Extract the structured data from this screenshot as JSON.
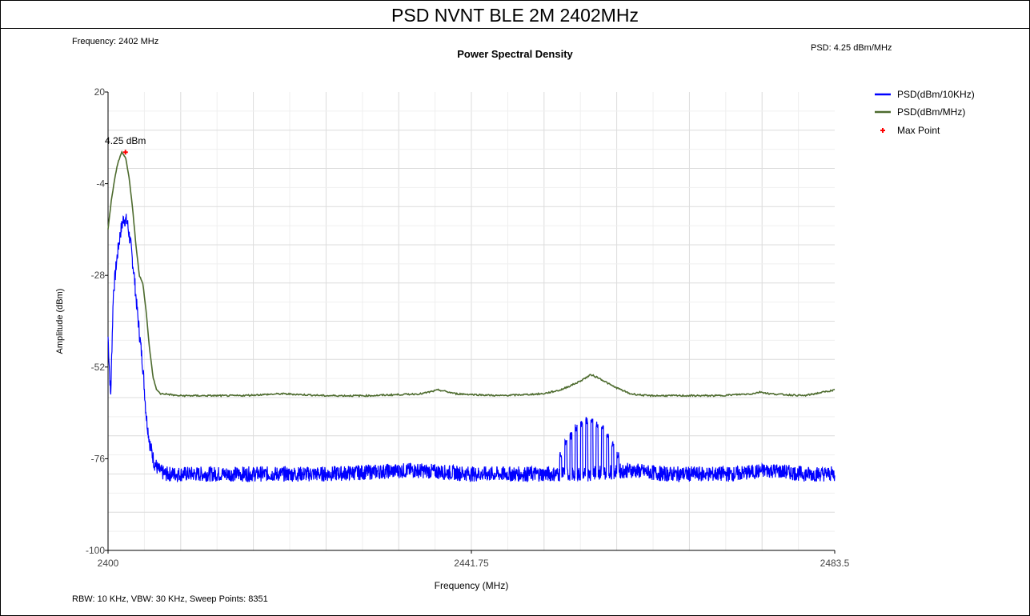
{
  "header": {
    "title": "PSD NVNT BLE 2M 2402MHz"
  },
  "readouts": {
    "frequency": "Frequency: 2402 MHz",
    "psd": "PSD: 4.25 dBm/MHz",
    "footer": "RBW: 10 KHz,  VBW: 30 KHz,  Sweep Points: 8351"
  },
  "chart_data": {
    "type": "line",
    "title": "Power Spectral Density",
    "xlabel": "Frequency (MHz)",
    "ylabel": "Amplitude (dBm)",
    "xlim": [
      2400,
      2483.5
    ],
    "ylim": [
      -100,
      20
    ],
    "x_ticks": [
      "2400",
      "2441.75",
      "2483.5"
    ],
    "y_ticks": [
      "20",
      "-4",
      "-28",
      "-52",
      "-76",
      "-100"
    ],
    "grid": true,
    "legend_position": "top-right",
    "series": [
      {
        "name": "PSD(dBm/10KHz)",
        "color": "#0000ff",
        "x": [
          2400,
          2400.3,
          2400.6,
          2401.0,
          2401.4,
          2401.8,
          2402.2,
          2402.6,
          2403.0,
          2403.3,
          2403.6,
          2404.0,
          2404.4,
          2404.8,
          2405.3,
          2405.8,
          2406.5,
          2408,
          2415,
          2425,
          2435,
          2442,
          2450,
          2455,
          2460,
          2464,
          2468,
          2472,
          2476,
          2480,
          2483.5
        ],
        "y": [
          -44,
          -60,
          -33,
          -24,
          -17,
          -13,
          -14,
          -20,
          -28,
          -36,
          -43,
          -52,
          -65,
          -72,
          -77,
          -79,
          -80,
          -80,
          -80,
          -80,
          -79,
          -80,
          -80,
          -80,
          -79,
          -80,
          -80,
          -80,
          -79,
          -80,
          -80
        ],
        "bursts": [
          {
            "x": 2452.0,
            "y": -75
          },
          {
            "x": 2452.6,
            "y": -72
          },
          {
            "x": 2453.2,
            "y": -70
          },
          {
            "x": 2453.8,
            "y": -68
          },
          {
            "x": 2454.4,
            "y": -67
          },
          {
            "x": 2455.0,
            "y": -66
          },
          {
            "x": 2455.6,
            "y": -66
          },
          {
            "x": 2456.2,
            "y": -67
          },
          {
            "x": 2456.8,
            "y": -68
          },
          {
            "x": 2457.4,
            "y": -70
          },
          {
            "x": 2458.0,
            "y": -72
          },
          {
            "x": 2458.6,
            "y": -75
          }
        ]
      },
      {
        "name": "PSD(dBm/MHz)",
        "color": "#4d6b2e",
        "x": [
          2400,
          2400.4,
          2400.8,
          2401.2,
          2401.6,
          2402.0,
          2402.4,
          2402.8,
          2403.2,
          2403.6,
          2404.0,
          2404.4,
          2404.8,
          2405.2,
          2405.6,
          2406.0,
          2406.5,
          2408,
          2415,
          2420,
          2425,
          2430,
          2436,
          2438,
          2440,
          2445,
          2450,
          2452,
          2454,
          2455.5,
          2456.5,
          2458,
          2460,
          2462,
          2466,
          2470,
          2474,
          2475,
          2476,
          2480,
          2483.5
        ],
        "y": [
          -16,
          -8,
          -2,
          2,
          4.25,
          3,
          -2,
          -10,
          -20,
          -28,
          -30,
          -38,
          -48,
          -55,
          -58,
          -59,
          -59,
          -59.5,
          -59.5,
          -59,
          -59.5,
          -59.5,
          -59,
          -58,
          -59,
          -59.5,
          -59,
          -58,
          -56,
          -54,
          -55,
          -57,
          -59,
          -59.5,
          -59.5,
          -59.5,
          -59,
          -58.5,
          -59,
          -59.5,
          -58
        ]
      }
    ],
    "max_point": {
      "name": "Max Point",
      "x": 2402,
      "y": 4.25,
      "label": "4.25 dBm",
      "color": "#ff0000"
    }
  }
}
